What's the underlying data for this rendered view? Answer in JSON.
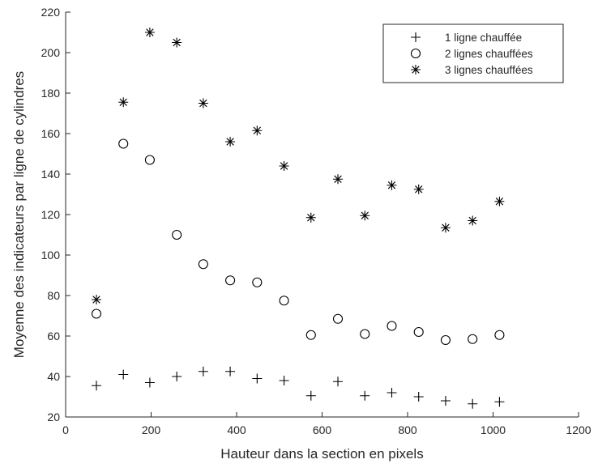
{
  "chart_data": {
    "type": "scatter",
    "title": "",
    "xlabel": "Hauteur dans la section en pixels",
    "ylabel": "Moyenne des indicateurs par ligne de cylindres",
    "xlim": [
      0,
      1200
    ],
    "ylim": [
      20,
      220
    ],
    "xticks": [
      0,
      200,
      400,
      600,
      800,
      1000,
      1200
    ],
    "yticks": [
      20,
      40,
      60,
      80,
      100,
      120,
      140,
      160,
      180,
      200,
      220
    ],
    "grid": false,
    "legend_position": "top-right",
    "series": [
      {
        "name": "1 ligne chauffée",
        "marker": "plus",
        "x": [
          72,
          135,
          197,
          260,
          322,
          385,
          448,
          511,
          574,
          637,
          700,
          763,
          826,
          889,
          952,
          1015
        ],
        "y": [
          35.5,
          41,
          37,
          40,
          42.5,
          42.5,
          39,
          38,
          30.5,
          37.5,
          30.5,
          32,
          30,
          28,
          26.5,
          27.5
        ]
      },
      {
        "name": "2 lignes chauffées",
        "marker": "circle",
        "x": [
          72,
          135,
          197,
          260,
          322,
          385,
          448,
          511,
          574,
          637,
          700,
          763,
          826,
          889,
          952,
          1015
        ],
        "y": [
          71,
          155,
          147,
          110,
          95.5,
          87.5,
          86.5,
          77.5,
          60.5,
          68.5,
          61,
          65,
          62,
          58,
          58.5,
          60.5
        ]
      },
      {
        "name": "3 lignes chauffées",
        "marker": "asterisk",
        "x": [
          72,
          135,
          197,
          260,
          322,
          385,
          448,
          511,
          574,
          637,
          700,
          763,
          826,
          889,
          952,
          1015
        ],
        "y": [
          78,
          175.5,
          210,
          205,
          175,
          156,
          161.5,
          144,
          118.5,
          137.5,
          119.5,
          134.5,
          132.5,
          113.5,
          117,
          126.5
        ]
      }
    ]
  }
}
